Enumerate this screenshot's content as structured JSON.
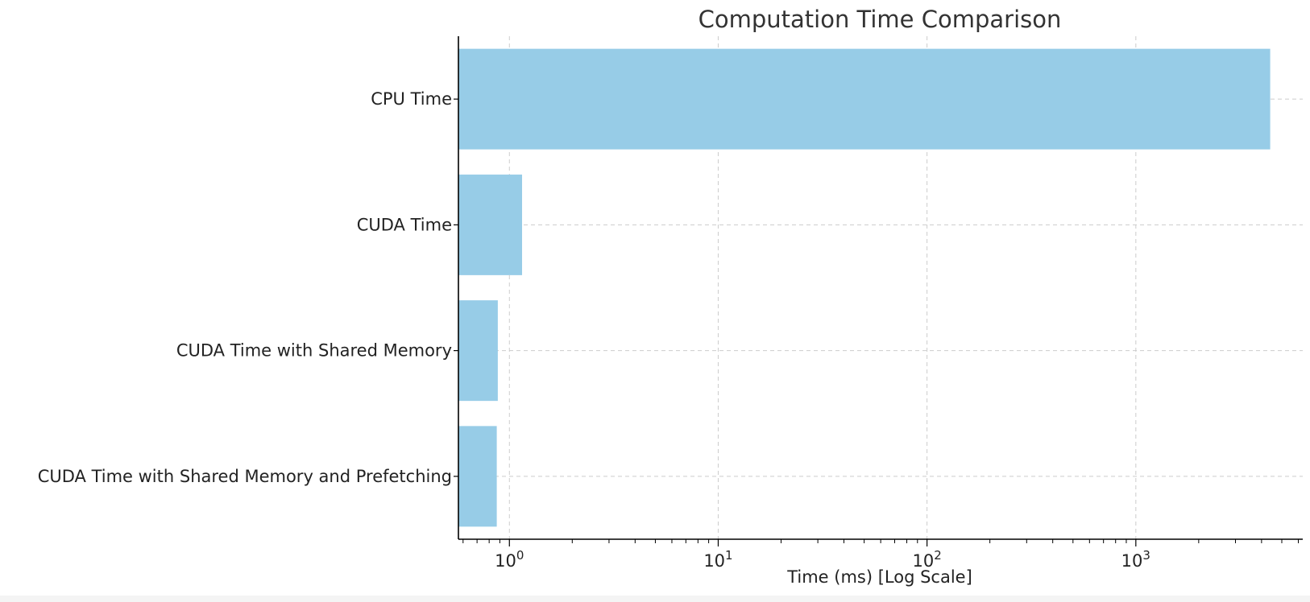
{
  "chart_data": {
    "type": "bar",
    "orientation": "horizontal",
    "title": "Computation Time Comparison",
    "xlabel": "Time (ms) [Log Scale]",
    "ylabel": "",
    "x_scale": "log",
    "xlim": [
      0.57,
      6300
    ],
    "x_ticks": [
      {
        "value": 1,
        "base": "10",
        "exp": "0"
      },
      {
        "value": 10,
        "base": "10",
        "exp": "1"
      },
      {
        "value": 100,
        "base": "10",
        "exp": "2"
      },
      {
        "value": 1000,
        "base": "10",
        "exp": "3"
      }
    ],
    "categories": [
      "CPU Time",
      "CUDA Time",
      "CUDA Time with Shared Memory",
      "CUDA Time with Shared Memory and Prefetching"
    ],
    "values": [
      4400,
      1.15,
      0.88,
      0.87
    ],
    "grid": true,
    "bar_color": "#97cce7",
    "grid_color": "#cccccc",
    "axis_color": "#000000",
    "text_color": "#222222"
  }
}
